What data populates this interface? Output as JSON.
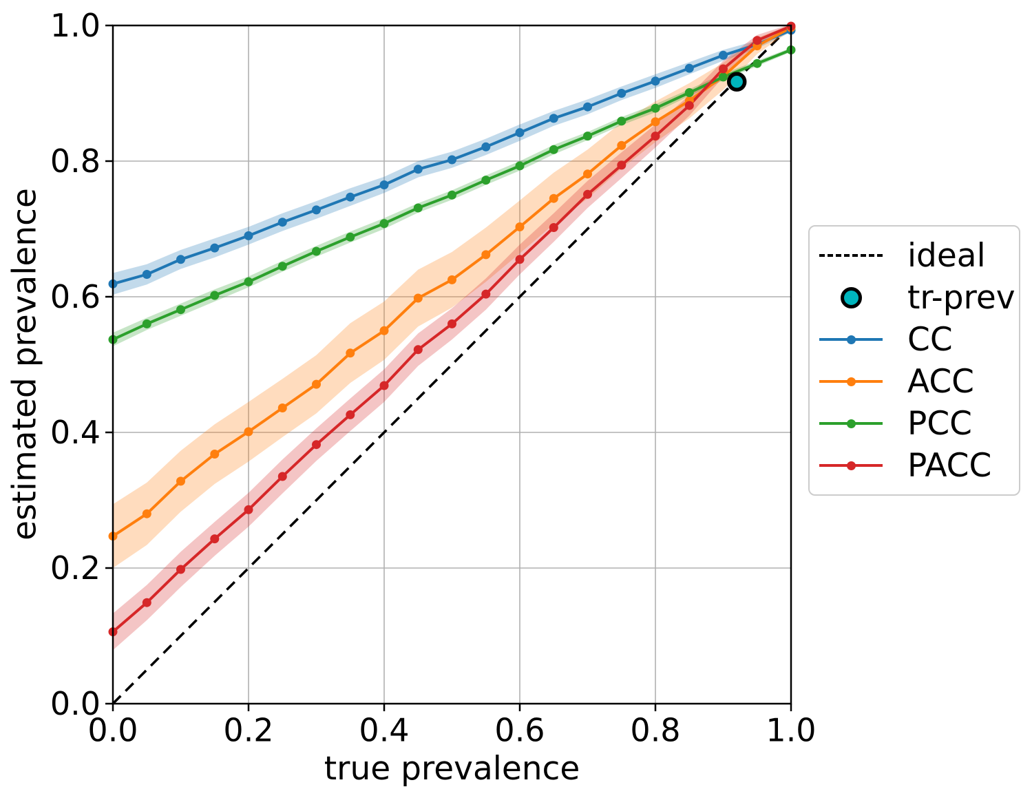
{
  "chart_data": {
    "type": "line",
    "title": "",
    "xlabel": "true prevalence",
    "ylabel": "estimated prevalence",
    "xlim": [
      0.0,
      1.0
    ],
    "ylim": [
      0.0,
      1.0
    ],
    "x_ticks": [
      0.0,
      0.2,
      0.4,
      0.6,
      0.8,
      1.0
    ],
    "y_ticks": [
      0.0,
      0.2,
      0.4,
      0.6,
      0.8,
      1.0
    ],
    "grid": true,
    "grid_color": "#b0b0b0",
    "band_opacity": 0.27,
    "x": [
      0.0,
      0.05,
      0.1,
      0.15,
      0.2,
      0.25,
      0.3,
      0.35,
      0.4,
      0.45,
      0.5,
      0.55,
      0.6,
      0.65,
      0.7,
      0.75,
      0.8,
      0.85,
      0.9,
      0.95,
      1.0
    ],
    "series": [
      {
        "name": "CC",
        "color": "#1f77b4",
        "values": [
          0.619,
          0.633,
          0.655,
          0.672,
          0.69,
          0.71,
          0.728,
          0.747,
          0.765,
          0.788,
          0.802,
          0.821,
          0.842,
          0.863,
          0.88,
          0.9,
          0.918,
          0.937,
          0.956,
          0.972,
          0.993
        ],
        "band": [
          0.016,
          0.015,
          0.014,
          0.014,
          0.013,
          0.013,
          0.013,
          0.013,
          0.012,
          0.012,
          0.012,
          0.012,
          0.012,
          0.011,
          0.011,
          0.01,
          0.01,
          0.009,
          0.008,
          0.006,
          0.003
        ]
      },
      {
        "name": "ACC",
        "color": "#ff7f0e",
        "values": [
          0.247,
          0.28,
          0.328,
          0.368,
          0.401,
          0.436,
          0.471,
          0.517,
          0.55,
          0.598,
          0.625,
          0.662,
          0.703,
          0.745,
          0.781,
          0.823,
          0.858,
          0.889,
          0.925,
          0.97,
          0.997
        ],
        "band": [
          0.047,
          0.046,
          0.045,
          0.044,
          0.044,
          0.043,
          0.043,
          0.044,
          0.043,
          0.042,
          0.041,
          0.04,
          0.039,
          0.038,
          0.036,
          0.034,
          0.03,
          0.026,
          0.02,
          0.012,
          0.004
        ]
      },
      {
        "name": "PCC",
        "color": "#2ca02c",
        "values": [
          0.537,
          0.56,
          0.581,
          0.602,
          0.622,
          0.645,
          0.667,
          0.688,
          0.708,
          0.731,
          0.75,
          0.772,
          0.793,
          0.817,
          0.837,
          0.859,
          0.878,
          0.901,
          0.924,
          0.944,
          0.964
        ],
        "band": [
          0.01,
          0.009,
          0.009,
          0.009,
          0.008,
          0.008,
          0.008,
          0.008,
          0.008,
          0.007,
          0.007,
          0.007,
          0.007,
          0.007,
          0.006,
          0.006,
          0.006,
          0.005,
          0.005,
          0.004,
          0.003
        ]
      },
      {
        "name": "PACC",
        "color": "#d62728",
        "values": [
          0.106,
          0.149,
          0.198,
          0.243,
          0.286,
          0.335,
          0.382,
          0.426,
          0.469,
          0.522,
          0.56,
          0.604,
          0.655,
          0.702,
          0.751,
          0.794,
          0.837,
          0.882,
          0.936,
          0.978,
          0.999
        ],
        "band": [
          0.027,
          0.026,
          0.026,
          0.025,
          0.025,
          0.025,
          0.024,
          0.024,
          0.024,
          0.024,
          0.023,
          0.023,
          0.022,
          0.021,
          0.02,
          0.019,
          0.017,
          0.015,
          0.012,
          0.008,
          0.003
        ]
      }
    ],
    "ideal": {
      "label": "ideal",
      "color": "#000000",
      "style": "dashed",
      "from": [
        0.0,
        0.0
      ],
      "to": [
        1.0,
        1.0
      ]
    },
    "tr_prev": {
      "label": "tr-prev",
      "x": 0.92,
      "y": 0.917,
      "fill": "#00b5bd",
      "edge": "#000000"
    },
    "legend": {
      "position": "center right",
      "items": [
        "ideal",
        "tr-prev",
        "CC",
        "ACC",
        "PCC",
        "PACC"
      ]
    }
  }
}
